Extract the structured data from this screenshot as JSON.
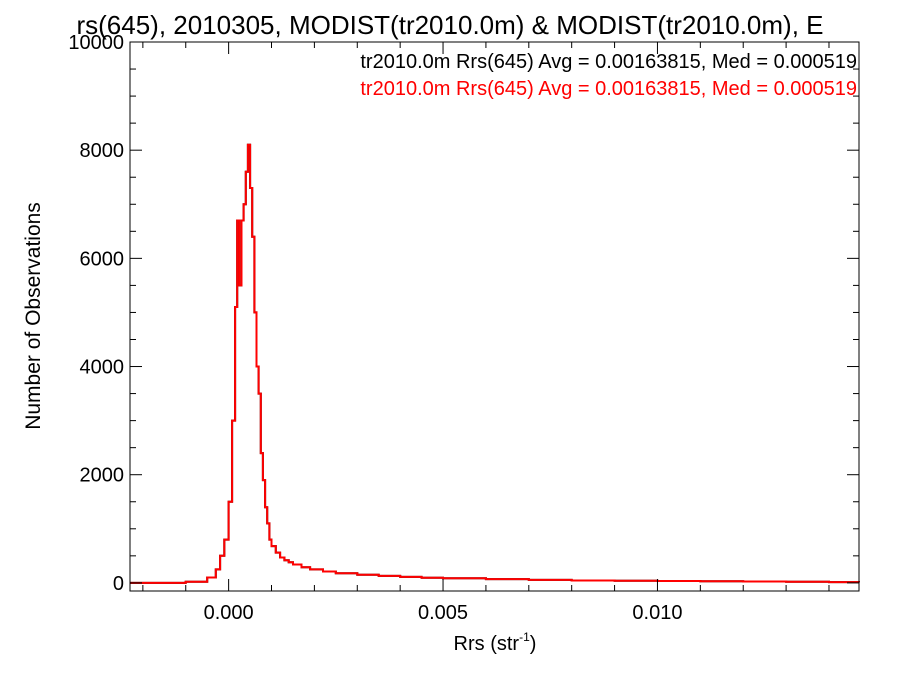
{
  "chart_data": {
    "type": "line",
    "title": "rs(645), 2010305, MODIST(tr2010.0m) & MODIST(tr2010.0m), E",
    "xlabel": "Rrs (str",
    "xlabel_sup": "-1",
    "xlabel_tail": ")",
    "ylabel": "Number of Observations",
    "xlim": [
      -0.0023,
      0.0147
    ],
    "ylim": [
      -150,
      10000
    ],
    "xticks": [
      0.0,
      0.005,
      0.01
    ],
    "xtick_labels": [
      "0.000",
      "0.005",
      "0.010"
    ],
    "yticks": [
      0,
      2000,
      4000,
      6000,
      8000,
      10000
    ],
    "ytick_labels": [
      "0",
      "2000",
      "4000",
      "6000",
      "8000",
      "10000"
    ],
    "legend_placement": "top-right",
    "grid": false,
    "series": [
      {
        "name": "tr2010.0m Rrs(645) Avg = 0.00163815, Med = 0.000519",
        "color": "#000000",
        "x": [
          -0.0023,
          -0.001,
          -0.0005,
          -0.0003,
          -0.0002,
          -0.0001,
          0.0,
          8e-05,
          0.00015,
          0.0002,
          0.00025,
          0.0003,
          0.00035,
          0.0004,
          0.00045,
          0.0005,
          0.00055,
          0.0006,
          0.00065,
          0.0007,
          0.00075,
          0.0008,
          0.00085,
          0.0009,
          0.00095,
          0.001,
          0.0011,
          0.0012,
          0.0013,
          0.0014,
          0.0015,
          0.0017,
          0.0019,
          0.0022,
          0.0025,
          0.003,
          0.0035,
          0.004,
          0.0045,
          0.005,
          0.006,
          0.007,
          0.008,
          0.009,
          0.01,
          0.011,
          0.012,
          0.013,
          0.014,
          0.0147
        ],
        "y": [
          0,
          20,
          100,
          250,
          500,
          800,
          1500,
          3000,
          5100,
          6700,
          5500,
          6700,
          7000,
          7600,
          8100,
          7300,
          6400,
          5000,
          4000,
          3500,
          2400,
          1900,
          1400,
          1100,
          800,
          680,
          560,
          470,
          420,
          380,
          340,
          290,
          250,
          210,
          180,
          150,
          130,
          110,
          95,
          85,
          70,
          55,
          45,
          40,
          35,
          30,
          25,
          20,
          15,
          10
        ]
      },
      {
        "name": "tr2010.0m Rrs(645) Avg = 0.00163815, Med = 0.000519",
        "color": "#ff0000",
        "x": [
          -0.0023,
          -0.001,
          -0.0005,
          -0.0003,
          -0.0002,
          -0.0001,
          0.0,
          8e-05,
          0.00015,
          0.0002,
          0.00025,
          0.0003,
          0.00035,
          0.0004,
          0.00045,
          0.0005,
          0.00055,
          0.0006,
          0.00065,
          0.0007,
          0.00075,
          0.0008,
          0.00085,
          0.0009,
          0.00095,
          0.001,
          0.0011,
          0.0012,
          0.0013,
          0.0014,
          0.0015,
          0.0017,
          0.0019,
          0.0022,
          0.0025,
          0.003,
          0.0035,
          0.004,
          0.0045,
          0.005,
          0.006,
          0.007,
          0.008,
          0.009,
          0.01,
          0.011,
          0.012,
          0.013,
          0.014,
          0.0147
        ],
        "y": [
          0,
          20,
          100,
          250,
          500,
          800,
          1500,
          3000,
          5100,
          6700,
          5500,
          6700,
          7000,
          7600,
          8100,
          7300,
          6400,
          5000,
          4000,
          3500,
          2400,
          1900,
          1400,
          1100,
          800,
          680,
          560,
          470,
          420,
          380,
          340,
          290,
          250,
          210,
          180,
          150,
          130,
          110,
          95,
          85,
          70,
          55,
          45,
          40,
          35,
          30,
          25,
          20,
          15,
          10
        ]
      }
    ]
  }
}
